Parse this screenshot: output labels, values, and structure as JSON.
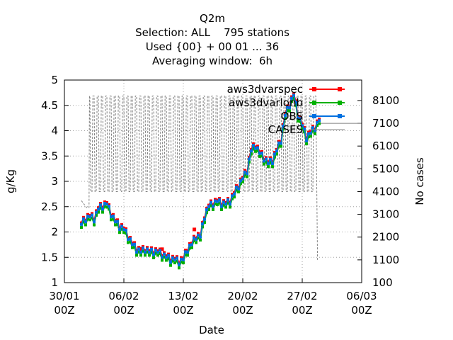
{
  "chart_data": {
    "type": "line",
    "title": [
      "Q2m",
      "Selection: ALL    795 stations",
      "Used {00} + 00 01 ... 36",
      "Averaging window:  6h"
    ],
    "xlabel": "Date",
    "ylabel": "g/Kg",
    "y2label": "No cases",
    "x_ticks": [
      {
        "day": 0,
        "line1": "30/01",
        "line2": "00Z"
      },
      {
        "day": 7,
        "line1": "06/02",
        "line2": "00Z"
      },
      {
        "day": 14,
        "line1": "13/02",
        "line2": "00Z"
      },
      {
        "day": 21,
        "line1": "20/02",
        "line2": "00Z"
      },
      {
        "day": 28,
        "line1": "27/02",
        "line2": "00Z"
      },
      {
        "day": 35,
        "line1": "06/03",
        "line2": "00Z"
      }
    ],
    "xlim": [
      0,
      35
    ],
    "ylim": [
      1,
      5
    ],
    "y_ticks": [
      "1",
      "1.5",
      "2",
      "2.5",
      "3",
      "3.5",
      "4",
      "4.5",
      "5"
    ],
    "y2lim": [
      100,
      9000
    ],
    "y2_ticks": [
      "100",
      "1100",
      "2100",
      "3100",
      "4100",
      "5100",
      "6100",
      "7100",
      "8100"
    ],
    "grid": true,
    "legend_position": "top-right",
    "series": [
      {
        "name": "aws3dvarspec",
        "color": "#ff0000",
        "offset": 0.03,
        "keypoints": [
          [
            2,
            2.15
          ],
          [
            2.5,
            2.25
          ],
          [
            3,
            2.3
          ],
          [
            3.5,
            2.25
          ],
          [
            4,
            2.45
          ],
          [
            4.5,
            2.5
          ],
          [
            5,
            2.55
          ],
          [
            5.5,
            2.35
          ],
          [
            6,
            2.2
          ],
          [
            6.5,
            2.1
          ],
          [
            7,
            2.05
          ],
          [
            7.5,
            1.9
          ],
          [
            8,
            1.75
          ],
          [
            8.5,
            1.65
          ],
          [
            9,
            1.6
          ],
          [
            9.5,
            1.65
          ],
          [
            10,
            1.6
          ],
          [
            10.5,
            1.6
          ],
          [
            11,
            1.6
          ],
          [
            11.5,
            1.55
          ],
          [
            12,
            1.5
          ],
          [
            12.5,
            1.45
          ],
          [
            13,
            1.45
          ],
          [
            13.5,
            1.4
          ],
          [
            14,
            1.45
          ],
          [
            14.5,
            1.65
          ],
          [
            15,
            1.75
          ],
          [
            15.5,
            1.9
          ],
          [
            16,
            1.9
          ],
          [
            16.5,
            2.3
          ],
          [
            17,
            2.5
          ],
          [
            17.5,
            2.55
          ],
          [
            18,
            2.6
          ],
          [
            18.5,
            2.55
          ],
          [
            19,
            2.55
          ],
          [
            19.5,
            2.6
          ],
          [
            20,
            2.75
          ],
          [
            20.5,
            2.9
          ],
          [
            21,
            3.05
          ],
          [
            21.5,
            3.2
          ],
          [
            22,
            3.6
          ],
          [
            22.5,
            3.7
          ],
          [
            23,
            3.55
          ],
          [
            23.5,
            3.45
          ],
          [
            24,
            3.35
          ],
          [
            24.5,
            3.4
          ],
          [
            25,
            3.6
          ],
          [
            25.5,
            3.8
          ],
          [
            26,
            4.3
          ],
          [
            26.5,
            4.5
          ],
          [
            27,
            4.7
          ],
          [
            27.5,
            4.3
          ],
          [
            28,
            4.1
          ],
          [
            28.5,
            3.85
          ],
          [
            29,
            3.95
          ],
          [
            29.5,
            4.05
          ],
          [
            30,
            4.2
          ]
        ],
        "extra_points": [
          [
            8.9,
            1.67
          ],
          [
            11.5,
            1.66
          ],
          [
            15.3,
            2.05
          ]
        ]
      },
      {
        "name": "aws3dvarlonb",
        "color": "#00b000",
        "offset": -0.06,
        "keypoints": [
          [
            2,
            2.15
          ],
          [
            2.5,
            2.25
          ],
          [
            3,
            2.3
          ],
          [
            3.5,
            2.25
          ],
          [
            4,
            2.45
          ],
          [
            4.5,
            2.5
          ],
          [
            5,
            2.55
          ],
          [
            5.5,
            2.35
          ],
          [
            6,
            2.2
          ],
          [
            6.5,
            2.1
          ],
          [
            7,
            2.05
          ],
          [
            7.5,
            1.9
          ],
          [
            8,
            1.75
          ],
          [
            8.5,
            1.65
          ],
          [
            9,
            1.6
          ],
          [
            9.5,
            1.65
          ],
          [
            10,
            1.6
          ],
          [
            10.5,
            1.6
          ],
          [
            11,
            1.6
          ],
          [
            11.5,
            1.55
          ],
          [
            12,
            1.5
          ],
          [
            12.5,
            1.45
          ],
          [
            13,
            1.45
          ],
          [
            13.5,
            1.4
          ],
          [
            14,
            1.45
          ],
          [
            14.5,
            1.65
          ],
          [
            15,
            1.75
          ],
          [
            15.5,
            1.9
          ],
          [
            16,
            1.9
          ],
          [
            16.5,
            2.3
          ],
          [
            17,
            2.5
          ],
          [
            17.5,
            2.55
          ],
          [
            18,
            2.6
          ],
          [
            18.5,
            2.55
          ],
          [
            19,
            2.55
          ],
          [
            19.5,
            2.6
          ],
          [
            20,
            2.75
          ],
          [
            20.5,
            2.9
          ],
          [
            21,
            3.05
          ],
          [
            21.5,
            3.2
          ],
          [
            22,
            3.6
          ],
          [
            22.5,
            3.7
          ],
          [
            23,
            3.55
          ],
          [
            23.5,
            3.45
          ],
          [
            24,
            3.35
          ],
          [
            24.5,
            3.4
          ],
          [
            25,
            3.6
          ],
          [
            25.5,
            3.8
          ],
          [
            26,
            4.3
          ],
          [
            26.5,
            4.5
          ],
          [
            27,
            4.7
          ],
          [
            27.5,
            4.3
          ],
          [
            28,
            4.1
          ],
          [
            28.5,
            3.85
          ],
          [
            29,
            3.95
          ],
          [
            29.5,
            4.05
          ],
          [
            30,
            4.2
          ]
        ],
        "extra_points": []
      },
      {
        "name": "OBS",
        "color": "#0070e0",
        "offset": 0,
        "keypoints": [
          [
            2,
            2.15
          ],
          [
            2.5,
            2.25
          ],
          [
            3,
            2.3
          ],
          [
            3.5,
            2.25
          ],
          [
            4,
            2.45
          ],
          [
            4.5,
            2.5
          ],
          [
            5,
            2.55
          ],
          [
            5.5,
            2.35
          ],
          [
            6,
            2.2
          ],
          [
            6.5,
            2.1
          ],
          [
            7,
            2.05
          ],
          [
            7.5,
            1.9
          ],
          [
            8,
            1.75
          ],
          [
            8.5,
            1.65
          ],
          [
            9,
            1.6
          ],
          [
            9.5,
            1.65
          ],
          [
            10,
            1.6
          ],
          [
            10.5,
            1.6
          ],
          [
            11,
            1.6
          ],
          [
            11.5,
            1.55
          ],
          [
            12,
            1.5
          ],
          [
            12.5,
            1.45
          ],
          [
            13,
            1.45
          ],
          [
            13.5,
            1.4
          ],
          [
            14,
            1.45
          ],
          [
            14.5,
            1.65
          ],
          [
            15,
            1.75
          ],
          [
            15.5,
            1.9
          ],
          [
            16,
            1.9
          ],
          [
            16.5,
            2.3
          ],
          [
            17,
            2.5
          ],
          [
            17.5,
            2.55
          ],
          [
            18,
            2.6
          ],
          [
            18.5,
            2.55
          ],
          [
            19,
            2.55
          ],
          [
            19.5,
            2.6
          ],
          [
            20,
            2.75
          ],
          [
            20.5,
            2.9
          ],
          [
            21,
            3.05
          ],
          [
            21.5,
            3.2
          ],
          [
            22,
            3.6
          ],
          [
            22.5,
            3.7
          ],
          [
            23,
            3.55
          ],
          [
            23.5,
            3.45
          ],
          [
            24,
            3.35
          ],
          [
            24.5,
            3.4
          ],
          [
            25,
            3.6
          ],
          [
            25.5,
            3.8
          ],
          [
            26,
            4.3
          ],
          [
            26.5,
            4.5
          ],
          [
            27,
            4.7
          ],
          [
            27.5,
            4.3
          ],
          [
            28,
            4.1
          ],
          [
            28.5,
            3.85
          ],
          [
            29,
            3.95
          ],
          [
            29.5,
            4.05
          ],
          [
            30,
            4.2
          ]
        ],
        "extra_points": []
      },
      {
        "name": "CASES",
        "color": "#808080",
        "axis": "right",
        "dashed": true,
        "low": 4100,
        "high": 8300,
        "first": 3700,
        "segment": {
          "start": 2.0,
          "rise": 2.9,
          "cycle_start": 3.0,
          "cycle_end": 29.0,
          "drop_day": 29.8,
          "drop_value": 1100
        },
        "tail": [
          [
            30,
            7100
          ],
          [
            35,
            7100
          ]
        ]
      }
    ]
  }
}
